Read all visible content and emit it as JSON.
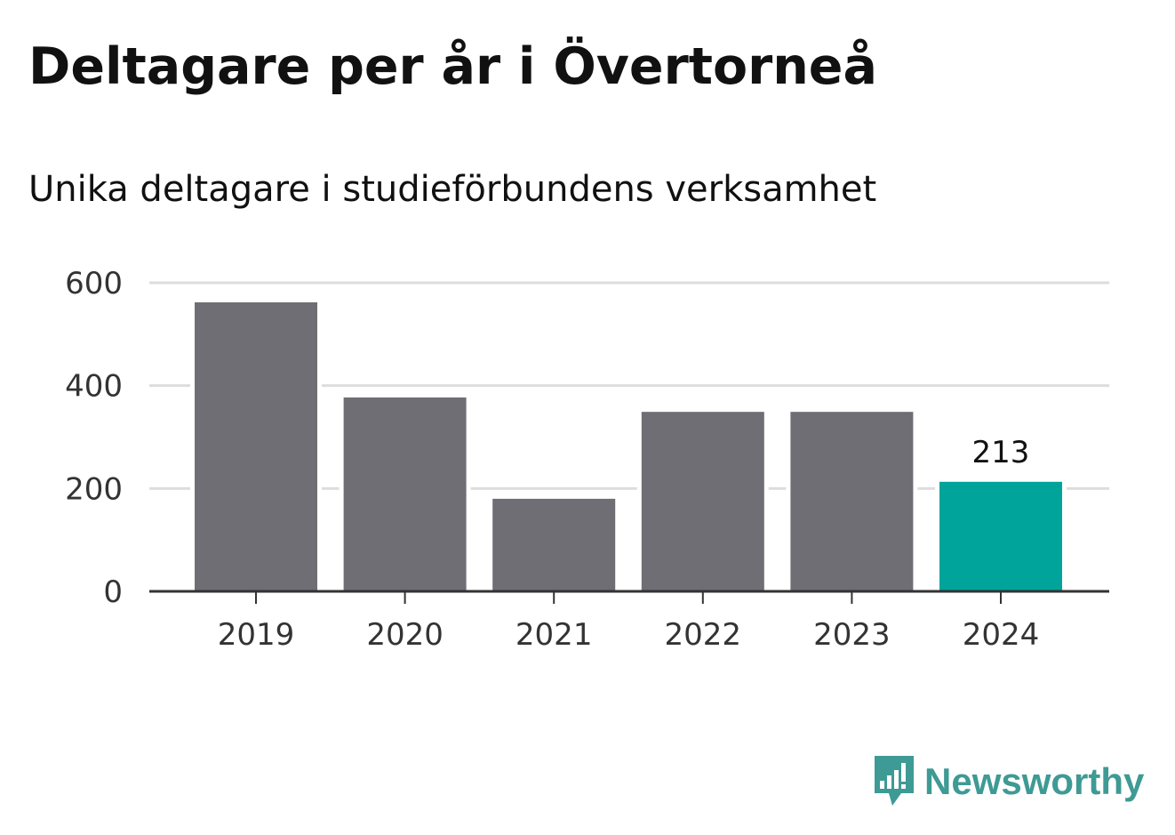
{
  "header": {
    "title": "Deltagare per år i Övertorneå",
    "subtitle": "Unika deltagare i studieförbundens verksamhet"
  },
  "chart_data": {
    "type": "bar",
    "title": "Deltagare per år i Övertorneå",
    "subtitle": "Unika deltagare i studieförbundens verksamhet",
    "categories": [
      "2019",
      "2020",
      "2021",
      "2022",
      "2023",
      "2024"
    ],
    "values": [
      562,
      377,
      180,
      349,
      349,
      213
    ],
    "data_labels": [
      {
        "category": "2024",
        "value": "213"
      }
    ],
    "y_ticks": [
      "0",
      "200",
      "400",
      "600"
    ],
    "ylim": [
      0,
      600
    ],
    "xlabel": "",
    "ylabel": "",
    "grid": true,
    "colors": {
      "bar": "#6f6e74",
      "highlight": "#00a49a",
      "grid": "#dddddd",
      "axis": "#333333"
    },
    "highlight_category": "2024"
  },
  "brand": {
    "name": "Newsworthy",
    "icon": "newsworthy-logo-icon",
    "color": "#3e9a94"
  }
}
